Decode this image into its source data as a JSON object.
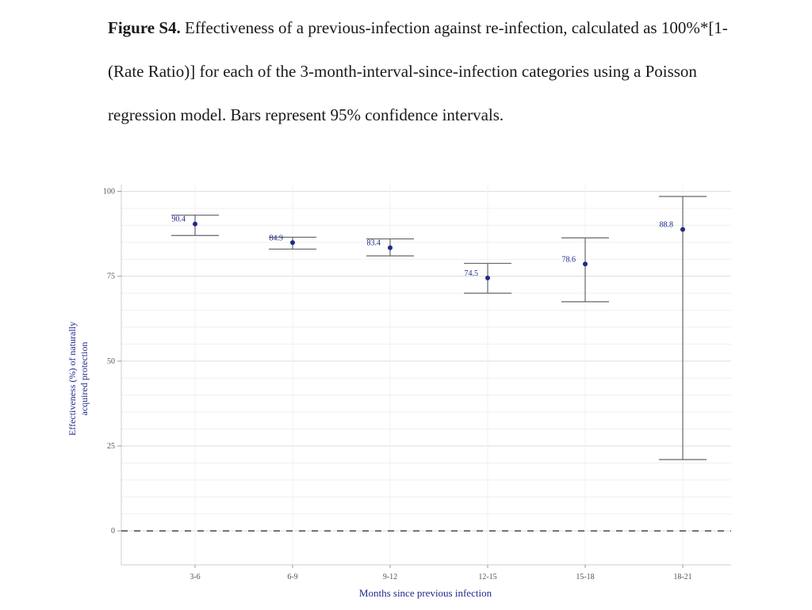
{
  "caption": {
    "label": "Figure S4.",
    "text": "Effectiveness of a previous-infection against re-infection, calculated as 100%*[1-(Rate Ratio)] for each of the 3-month-interval-since-infection categories using a Poisson regression model. Bars represent 95% confidence intervals."
  },
  "chart_data": {
    "type": "scatter",
    "xlabel": "Months since previous infection",
    "ylabel_line1": "Effectiveness (%) of naturally",
    "ylabel_line2": "acquired protection",
    "categories": [
      "3-6",
      "6-9",
      "9-12",
      "12-15",
      "15-18",
      "18-21"
    ],
    "values": [
      90.4,
      84.9,
      83.4,
      74.5,
      78.6,
      88.8
    ],
    "value_labels": [
      "90.4",
      "84.9",
      "83.4",
      "74.5",
      "78.6",
      "88.8"
    ],
    "ci_lower": [
      87.0,
      83.0,
      81.0,
      70.0,
      67.5,
      21.0
    ],
    "ci_upper": [
      93.0,
      86.5,
      86.0,
      78.8,
      86.3,
      98.5
    ],
    "yticks": [
      "0",
      "25",
      "50",
      "75",
      "100"
    ],
    "ylim": [
      -10,
      102
    ],
    "reference_line": 0,
    "grid": true,
    "colors": {
      "point": "#1f2a8a",
      "errorbar": "#666666",
      "grid": "#e6e6e6",
      "refline": "#555555"
    }
  }
}
